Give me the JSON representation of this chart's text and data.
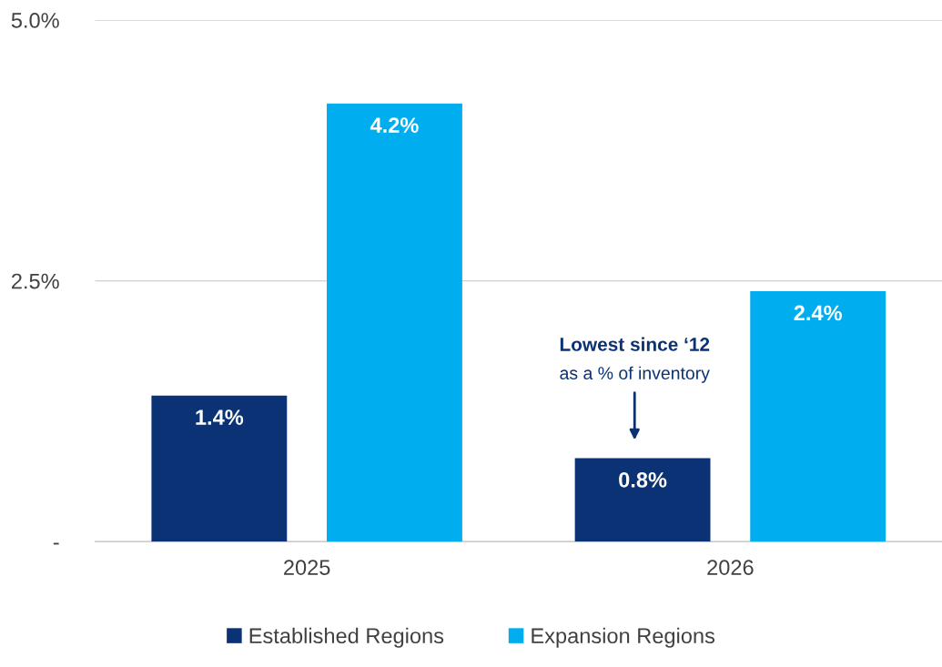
{
  "chart_data": {
    "type": "bar",
    "categories": [
      "2025",
      "2026"
    ],
    "series": [
      {
        "name": "Established Regions",
        "color": "#0b3275",
        "values": [
          1.4,
          0.8
        ],
        "value_labels": [
          "1.4%",
          "0.8%"
        ]
      },
      {
        "name": "Expansion Regions",
        "color": "#00aeef",
        "values": [
          4.2,
          2.4
        ],
        "value_labels": [
          "4.2%",
          "2.4%"
        ]
      }
    ],
    "ylim": [
      0,
      5
    ],
    "yticks": [
      {
        "value": 0,
        "label": "-"
      },
      {
        "value": 2.5,
        "label": "2.5%"
      },
      {
        "value": 5,
        "label": "5.0%"
      }
    ],
    "grid": "y",
    "legend": "bottom",
    "annotations": [
      "Lowest since ‘12",
      "as a % of inventory"
    ]
  }
}
